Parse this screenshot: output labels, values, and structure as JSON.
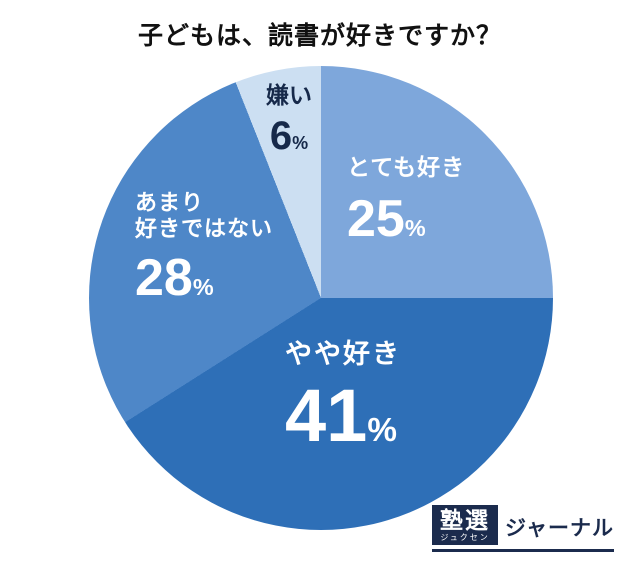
{
  "title": "子どもは、読書が好きですか？",
  "chart_data": {
    "type": "pie",
    "title": "子どもは、読書が好きですか？",
    "unit": "%",
    "start_angle_deg": 0,
    "direction": "clockwise",
    "legend_position": "labels-inside-slices",
    "slices": [
      {
        "label": "とても好き",
        "value": 25,
        "color": "#7ea7db",
        "text_color": "#ffffff"
      },
      {
        "label": "やや好き",
        "value": 41,
        "color": "#2e6fb7",
        "text_color": "#ffffff"
      },
      {
        "label": "あまり好きではない",
        "label_lines": [
          "あまり",
          "好きではない"
        ],
        "value": 28,
        "color": "#4e87c8",
        "text_color": "#ffffff"
      },
      {
        "label": "嫌い",
        "value": 6,
        "color": "#ccdff2",
        "text_color": "#16294a"
      }
    ]
  },
  "logo": {
    "mark": "塾選",
    "mark_ruby": "ジュクセン",
    "wordmark": "ジャーナル"
  }
}
